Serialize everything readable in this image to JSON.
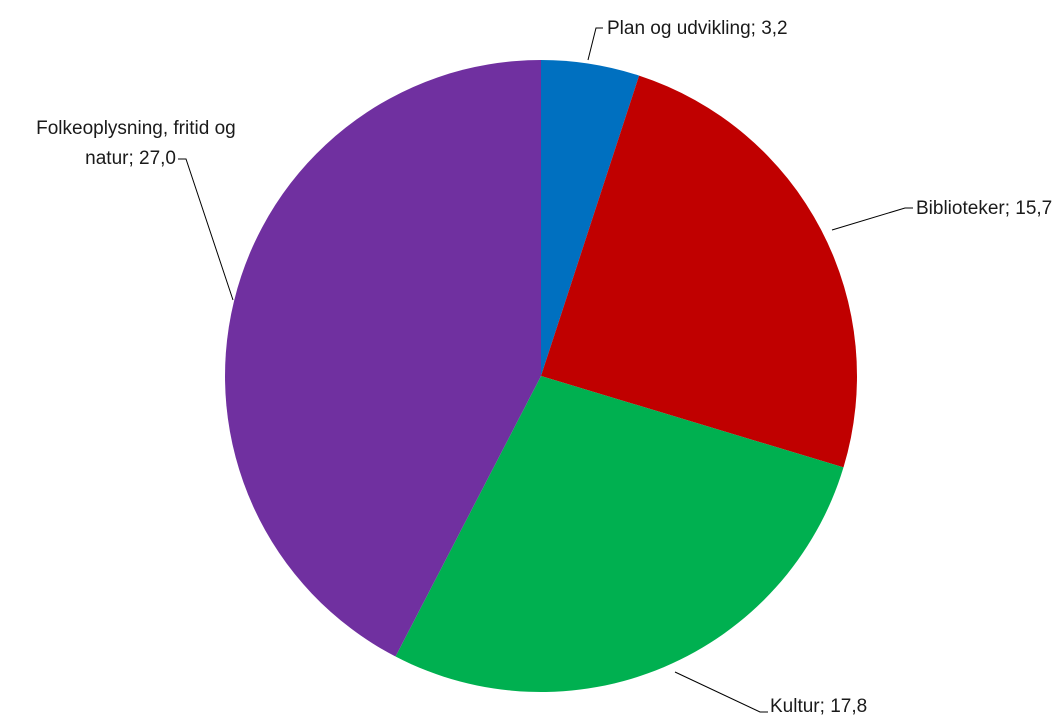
{
  "chart_data": {
    "type": "pie",
    "title": "",
    "slices": [
      {
        "label": "Plan og udvikling; 3,2",
        "category": "Plan og udvikling",
        "value": 3.2,
        "color": "#0070C0"
      },
      {
        "label": "Biblioteker; 15,7",
        "category": "Biblioteker",
        "value": 15.7,
        "color": "#C00000"
      },
      {
        "label": "Kultur; 17,8",
        "category": "Kultur",
        "value": 17.8,
        "color": "#00B050"
      },
      {
        "label_lines": [
          "Folkeoplysning, fritid og",
          "natur; 27,0"
        ],
        "category": "Folkeoplysning, fritid og natur",
        "value": 27.0,
        "color": "#7030A0"
      }
    ],
    "start_angle": "12 o'clock",
    "direction": "clockwise",
    "legend": "none"
  }
}
